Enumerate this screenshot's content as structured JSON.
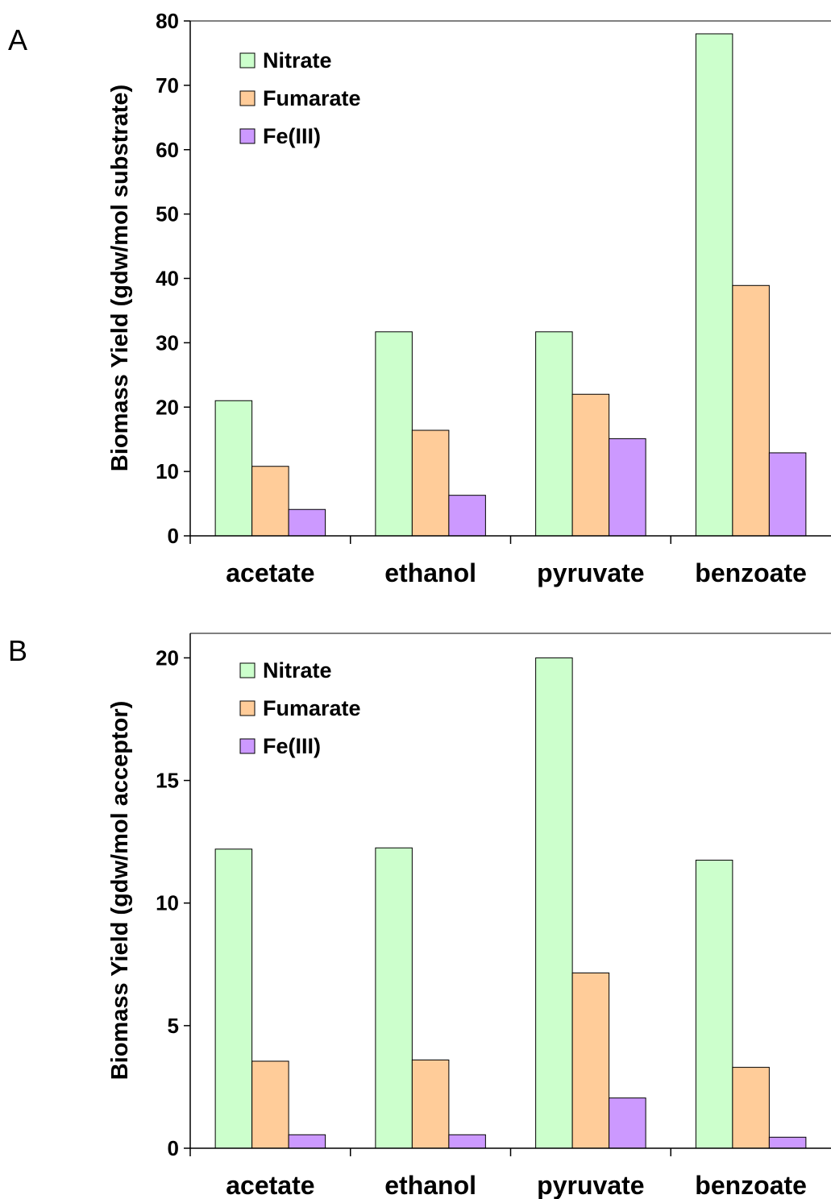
{
  "chart_data": [
    {
      "type": "bar",
      "panel": "A",
      "categories": [
        "acetate",
        "ethanol",
        "pyruvate",
        "benzoate"
      ],
      "ylabel": "Biomass Yield (gdw/mol substrate)",
      "ylim": [
        0,
        80
      ],
      "yticks": [
        0,
        10,
        20,
        30,
        40,
        50,
        60,
        70,
        80
      ],
      "legend_position": "top-left",
      "grid": false,
      "series": [
        {
          "name": "Nitrate",
          "color": "#ccffcc",
          "values": [
            21.0,
            31.7,
            31.7,
            78.0
          ]
        },
        {
          "name": "Fumarate",
          "color": "#ffcc99",
          "values": [
            10.8,
            16.4,
            22.0,
            38.9
          ]
        },
        {
          "name": "Fe(III)",
          "color": "#cc99ff",
          "values": [
            4.1,
            6.3,
            15.1,
            12.9
          ]
        }
      ]
    },
    {
      "type": "bar",
      "panel": "B",
      "categories": [
        "acetate",
        "ethanol",
        "pyruvate",
        "benzoate"
      ],
      "ylabel": "Biomass Yield (gdw/mol acceptor)",
      "ylim": [
        0,
        21
      ],
      "yticks": [
        0,
        5,
        10,
        15,
        20
      ],
      "legend_position": "top-left",
      "grid": false,
      "series": [
        {
          "name": "Nitrate",
          "color": "#ccffcc",
          "values": [
            12.2,
            12.25,
            20.0,
            11.75
          ]
        },
        {
          "name": "Fumarate",
          "color": "#ffcc99",
          "values": [
            3.55,
            3.6,
            7.15,
            3.3
          ]
        },
        {
          "name": "Fe(III)",
          "color": "#cc99ff",
          "values": [
            0.55,
            0.55,
            2.05,
            0.45
          ]
        }
      ]
    }
  ]
}
